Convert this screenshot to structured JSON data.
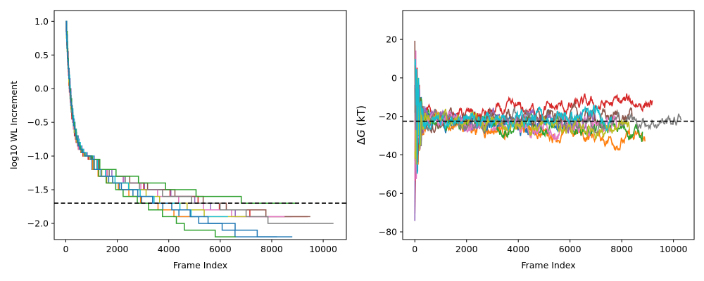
{
  "chart_data": [
    {
      "type": "line",
      "title": "",
      "xlabel": "Frame Index",
      "ylabel": "log10 WL Increment",
      "xlim": [
        -450,
        10900
      ],
      "ylim": [
        -2.24,
        1.16
      ],
      "xticks": [
        0,
        2000,
        4000,
        6000,
        8000,
        10000
      ],
      "xtick_labels": [
        "0",
        "2000",
        "4000",
        "6000",
        "8000",
        "10000"
      ],
      "yticks": [
        1.0,
        0.5,
        0.0,
        -0.5,
        -1.0,
        -1.5,
        -2.0
      ],
      "ytick_labels": [
        "1.0",
        "0.5",
        "0.0",
        "−0.5",
        "−1.0",
        "−1.5",
        "−2.0"
      ],
      "grid": false,
      "legend": "none",
      "reference_line": {
        "y": -1.7,
        "style": "dashed",
        "color": "#000000"
      },
      "colors": [
        "#1f77b4",
        "#ff7f0e",
        "#2ca02c",
        "#d62728",
        "#9467bd",
        "#8c564b",
        "#e377c2",
        "#7f7f7f",
        "#bcbd22",
        "#17becf"
      ],
      "series": [
        {
          "color": "#1f77b4",
          "end_x": 8200,
          "end_y": -2.1
        },
        {
          "color": "#ff7f0e",
          "end_x": 5000,
          "end_y": -1.8
        },
        {
          "color": "#2ca02c",
          "end_x": 6600,
          "end_y": -2.1
        },
        {
          "color": "#d62728",
          "end_x": 9400,
          "end_y": -1.9
        },
        {
          "color": "#9467bd",
          "end_x": 8800,
          "end_y": -1.9
        },
        {
          "color": "#8c564b",
          "end_x": 9500,
          "end_y": -1.8
        },
        {
          "color": "#e377c2",
          "end_x": 8500,
          "end_y": -1.9
        },
        {
          "color": "#7f7f7f",
          "end_x": 10400,
          "end_y": -2.0
        },
        {
          "color": "#bcbd22",
          "end_x": 7000,
          "end_y": -1.8
        },
        {
          "color": "#17becf",
          "end_x": 6300,
          "end_y": -1.9
        },
        {
          "color": "#2ca02c",
          "end_x": 9000,
          "end_y": -1.7
        },
        {
          "color": "#1f77b4",
          "end_x": 8800,
          "end_y": -2.1
        }
      ]
    },
    {
      "type": "line",
      "title": "",
      "xlabel": "Frame Index",
      "ylabel_prefix": "Δ",
      "ylabel_var": "G",
      "ylabel_suffix": " (kT)",
      "xlim": [
        -470,
        10800
      ],
      "ylim": [
        -84,
        35
      ],
      "xticks": [
        0,
        2000,
        4000,
        6000,
        8000,
        10000
      ],
      "xtick_labels": [
        "0",
        "2000",
        "4000",
        "6000",
        "8000",
        "10000"
      ],
      "yticks": [
        20,
        0,
        -20,
        -40,
        -60,
        -80
      ],
      "ytick_labels": [
        "20",
        "0",
        "−20",
        "−40",
        "−60",
        "−80"
      ],
      "grid": false,
      "legend": "none",
      "reference_line": {
        "y": -22.5,
        "style": "dashed",
        "color": "#000000"
      },
      "series": [
        {
          "color": "#1f77b4",
          "end_x": 6500,
          "final_value": -24
        },
        {
          "color": "#ff7f0e",
          "end_x": 8900,
          "final_value": -33
        },
        {
          "color": "#2ca02c",
          "end_x": 8800,
          "final_value": -28
        },
        {
          "color": "#d62728",
          "end_x": 9200,
          "final_value": -12
        },
        {
          "color": "#9467bd",
          "end_x": 7000,
          "final_value": -22
        },
        {
          "color": "#8c564b",
          "end_x": 8400,
          "final_value": -20
        },
        {
          "color": "#e377c2",
          "end_x": 7800,
          "final_value": -26
        },
        {
          "color": "#7f7f7f",
          "end_x": 10300,
          "final_value": -22
        },
        {
          "color": "#bcbd22",
          "end_x": 8300,
          "final_value": -27
        },
        {
          "color": "#17becf",
          "end_x": 7600,
          "final_value": -20
        }
      ]
    }
  ]
}
